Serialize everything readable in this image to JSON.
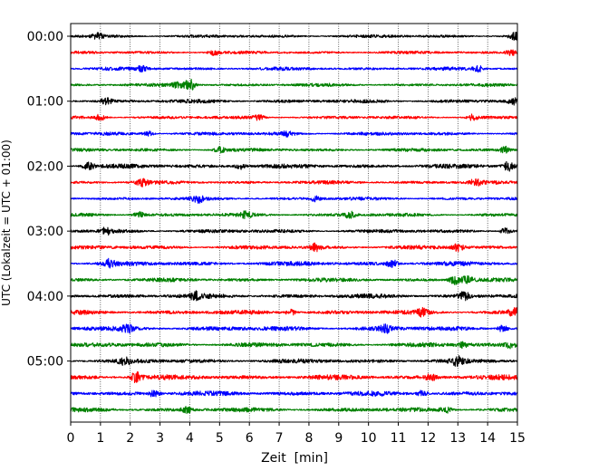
{
  "chart_data": {
    "type": "seismogram-helicorder",
    "xlabel": "Zeit  [min]",
    "ylabel": "UTC (Lokalzeit = UTC + 01:00)",
    "xlim": [
      0,
      15
    ],
    "x_ticks": [
      0,
      1,
      2,
      3,
      4,
      5,
      6,
      7,
      8,
      9,
      10,
      11,
      12,
      13,
      14,
      15
    ],
    "x_tick_labels": [
      "0",
      "1",
      "2",
      "3",
      "4",
      "5",
      "6",
      "7",
      "8",
      "9",
      "10",
      "11",
      "12",
      "13",
      "14",
      "15"
    ],
    "grid": "vertical dotted at each minute",
    "trace_minutes": 15,
    "trace_count": 24,
    "trace_start_labels": [
      "00:00",
      "00:15",
      "00:30",
      "00:45",
      "01:00",
      "01:15",
      "01:30",
      "01:45",
      "02:00",
      "02:15",
      "02:30",
      "02:45",
      "03:00",
      "03:15",
      "03:30",
      "03:45",
      "04:00",
      "04:15",
      "04:30",
      "04:45",
      "05:00",
      "05:15",
      "05:30",
      "05:45"
    ],
    "y_tick_labels": [
      "00:00",
      "01:00",
      "02:00",
      "03:00",
      "04:00",
      "05:00"
    ],
    "trace_colors": [
      "#000000",
      "#ff0000",
      "#0000ff",
      "#008000"
    ],
    "noise_level": [
      0.8,
      0.75,
      0.85,
      0.8,
      0.95,
      0.8,
      0.9,
      0.85,
      1.1,
      0.9,
      0.85,
      0.9,
      0.95,
      1.0,
      1.1,
      1.0,
      1.15,
      1.1,
      1.2,
      1.15,
      1.1,
      1.25,
      1.2,
      1.1
    ],
    "events": [
      {
        "trace": 0,
        "t": 0.9,
        "amp": 1.6
      },
      {
        "trace": 0,
        "t": 14.9,
        "amp": 1.9
      },
      {
        "trace": 1,
        "t": 4.8,
        "amp": 1.5
      },
      {
        "trace": 1,
        "t": 14.8,
        "amp": 1.8
      },
      {
        "trace": 2,
        "t": 2.4,
        "amp": 1.4
      },
      {
        "trace": 2,
        "t": 13.7,
        "amp": 1.6
      },
      {
        "trace": 3,
        "t": 4.0,
        "amp": 3.2
      },
      {
        "trace": 3,
        "t": 3.6,
        "amp": 1.6
      },
      {
        "trace": 4,
        "t": 1.2,
        "amp": 1.8
      },
      {
        "trace": 4,
        "t": 14.9,
        "amp": 1.6
      },
      {
        "trace": 5,
        "t": 1.0,
        "amp": 1.6
      },
      {
        "trace": 5,
        "t": 6.3,
        "amp": 1.6
      },
      {
        "trace": 5,
        "t": 13.5,
        "amp": 1.6
      },
      {
        "trace": 6,
        "t": 2.6,
        "amp": 1.4
      },
      {
        "trace": 6,
        "t": 7.3,
        "amp": 1.3
      },
      {
        "trace": 7,
        "t": 5.0,
        "amp": 1.5
      },
      {
        "trace": 7,
        "t": 14.6,
        "amp": 1.6
      },
      {
        "trace": 8,
        "t": 0.6,
        "amp": 1.9
      },
      {
        "trace": 8,
        "t": 5.7,
        "amp": 1.6
      },
      {
        "trace": 8,
        "t": 14.7,
        "amp": 2.6
      },
      {
        "trace": 9,
        "t": 2.4,
        "amp": 1.9
      },
      {
        "trace": 9,
        "t": 13.6,
        "amp": 1.7
      },
      {
        "trace": 10,
        "t": 4.3,
        "amp": 1.8
      },
      {
        "trace": 10,
        "t": 8.2,
        "amp": 1.4
      },
      {
        "trace": 11,
        "t": 2.3,
        "amp": 1.6
      },
      {
        "trace": 11,
        "t": 5.9,
        "amp": 1.7
      },
      {
        "trace": 11,
        "t": 9.4,
        "amp": 1.8
      },
      {
        "trace": 12,
        "t": 1.2,
        "amp": 1.6
      },
      {
        "trace": 12,
        "t": 14.6,
        "amp": 1.6
      },
      {
        "trace": 13,
        "t": 8.2,
        "amp": 2.0
      },
      {
        "trace": 13,
        "t": 13.0,
        "amp": 1.9
      },
      {
        "trace": 14,
        "t": 1.3,
        "amp": 2.0
      },
      {
        "trace": 14,
        "t": 10.8,
        "amp": 2.0
      },
      {
        "trace": 15,
        "t": 12.9,
        "amp": 2.4
      },
      {
        "trace": 15,
        "t": 13.3,
        "amp": 2.1
      },
      {
        "trace": 16,
        "t": 4.2,
        "amp": 1.8
      },
      {
        "trace": 16,
        "t": 13.2,
        "amp": 2.2
      },
      {
        "trace": 17,
        "t": 7.4,
        "amp": 1.8
      },
      {
        "trace": 17,
        "t": 11.8,
        "amp": 1.8
      },
      {
        "trace": 17,
        "t": 14.9,
        "amp": 2.0
      },
      {
        "trace": 18,
        "t": 1.9,
        "amp": 1.8
      },
      {
        "trace": 18,
        "t": 10.6,
        "amp": 2.0
      },
      {
        "trace": 18,
        "t": 14.5,
        "amp": 1.8
      },
      {
        "trace": 19,
        "t": 13.2,
        "amp": 1.6
      },
      {
        "trace": 19,
        "t": 14.8,
        "amp": 1.8
      },
      {
        "trace": 20,
        "t": 1.8,
        "amp": 1.8
      },
      {
        "trace": 20,
        "t": 13.0,
        "amp": 2.2
      },
      {
        "trace": 21,
        "t": 2.2,
        "amp": 2.8
      },
      {
        "trace": 21,
        "t": 12.1,
        "amp": 1.8
      },
      {
        "trace": 22,
        "t": 2.8,
        "amp": 1.7
      },
      {
        "trace": 22,
        "t": 11.8,
        "amp": 1.6
      },
      {
        "trace": 23,
        "t": 3.9,
        "amp": 1.7
      },
      {
        "trace": 23,
        "t": 12.6,
        "amp": 1.6
      }
    ]
  }
}
